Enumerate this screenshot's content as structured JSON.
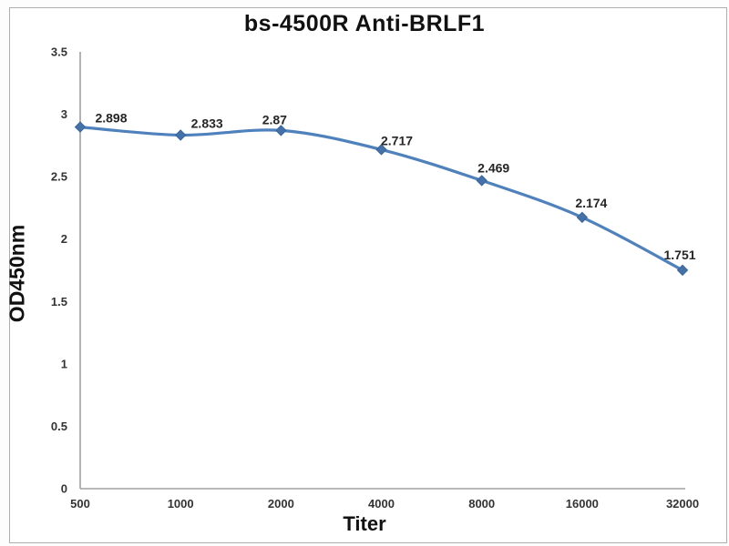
{
  "colors": {
    "line": "#4f81bd",
    "marker_fill": "#4472a8",
    "marker_stroke": "#3a659c",
    "axis": "#a0a0a0",
    "tick_text": "#333333",
    "label_text": "#262626",
    "title_text": "#111111",
    "frame_border": "#aeaeae"
  },
  "chart_data": {
    "type": "line",
    "title": "bs-4500R Anti-BRLF1",
    "xlabel": "Titer",
    "ylabel": "OD450nm",
    "categories": [
      "500",
      "1000",
      "2000",
      "4000",
      "8000",
      "16000",
      "32000"
    ],
    "series": [
      {
        "name": "OD450nm",
        "values": [
          2.898,
          2.833,
          2.87,
          2.717,
          2.469,
          2.174,
          1.751
        ],
        "data_labels": [
          "2.898",
          "2.833",
          "2.87",
          "2.717",
          "2.469",
          "2.174",
          "1.751"
        ]
      }
    ],
    "ylim": [
      0,
      3.5
    ],
    "ytick_step": 0.5,
    "yticks": [
      "0",
      "0.5",
      "1",
      "1.5",
      "2",
      "2.5",
      "3",
      "3.5"
    ],
    "grid": false,
    "legend": "none",
    "marker": "diamond",
    "line_style": "smooth"
  }
}
